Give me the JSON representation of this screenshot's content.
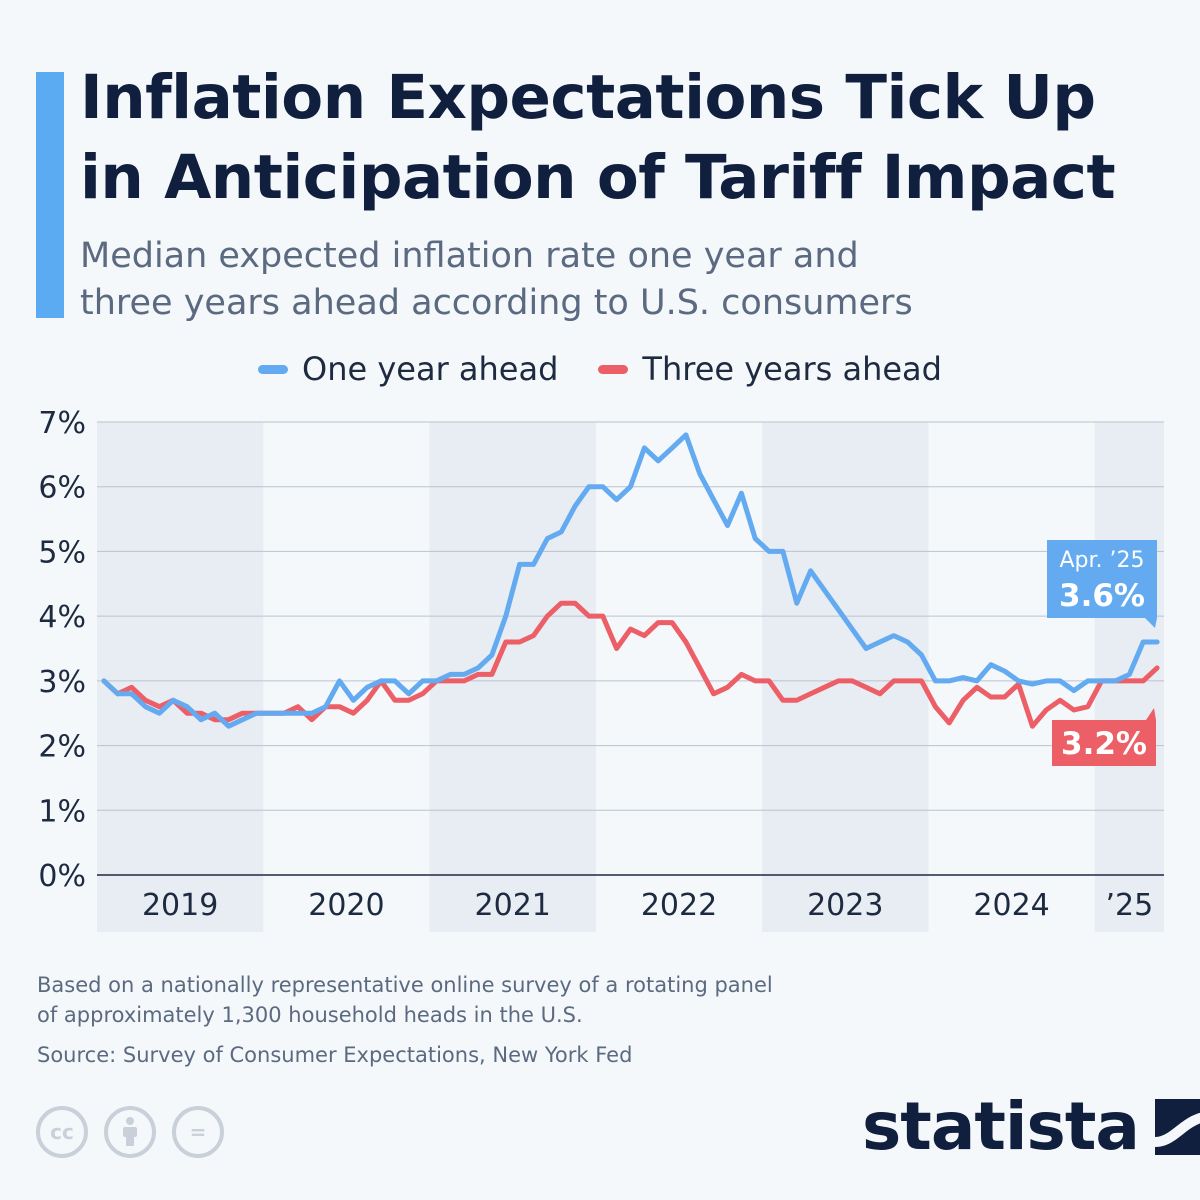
{
  "header": {
    "title_lines": [
      "Inflation Expectations Tick Up",
      "in Anticipation of Tariff Impact"
    ],
    "subtitle_lines": [
      "Median expected inflation rate one year and",
      "three years ahead according to U.S. consumers"
    ]
  },
  "colors": {
    "one_year": "#63aaf0",
    "three_years": "#ec5f66",
    "accent": "#5aabf2",
    "title": "#0f1f3d"
  },
  "legend": {
    "one_year": "One year ahead",
    "three_years": "Three years ahead"
  },
  "chart_data": {
    "type": "line",
    "title": "Inflation Expectations Tick Up in Anticipation of Tariff Impact",
    "xlabel": "",
    "ylabel": "",
    "ylim": [
      0,
      7
    ],
    "y_ticks": [
      "0%",
      "1%",
      "2%",
      "3%",
      "4%",
      "5%",
      "6%",
      "7%"
    ],
    "x_ticks": [
      "2019",
      "2020",
      "2021",
      "2022",
      "2023",
      "2024",
      "’25"
    ],
    "start": "Jan 2019",
    "end": "Apr 2025",
    "grid": true,
    "legend_position": "top-center",
    "series": [
      {
        "name": "One year ahead",
        "values": [
          3.0,
          2.8,
          2.8,
          2.6,
          2.5,
          2.7,
          2.6,
          2.4,
          2.5,
          2.3,
          2.4,
          2.5,
          2.5,
          2.5,
          2.5,
          2.5,
          2.6,
          3.0,
          2.7,
          2.9,
          3.0,
          3.0,
          2.8,
          3.0,
          3.0,
          3.1,
          3.1,
          3.2,
          3.4,
          4.0,
          4.8,
          4.8,
          5.2,
          5.3,
          5.7,
          6.0,
          6.0,
          5.8,
          6.0,
          6.6,
          6.4,
          6.6,
          6.8,
          6.2,
          5.8,
          5.4,
          5.9,
          5.2,
          5.0,
          5.0,
          4.2,
          4.7,
          4.4,
          4.1,
          3.8,
          3.5,
          3.6,
          3.7,
          3.6,
          3.4,
          3.0,
          3.0,
          3.05,
          3.0,
          3.25,
          3.15,
          3.0,
          2.95,
          3.0,
          3.0,
          2.85,
          3.0,
          3.0,
          3.0,
          3.1,
          3.6,
          3.6
        ]
      },
      {
        "name": "Three years ahead",
        "values": [
          3.0,
          2.8,
          2.9,
          2.7,
          2.6,
          2.7,
          2.5,
          2.5,
          2.4,
          2.4,
          2.5,
          2.5,
          2.5,
          2.5,
          2.6,
          2.4,
          2.6,
          2.6,
          2.5,
          2.7,
          3.0,
          2.7,
          2.7,
          2.8,
          3.0,
          3.0,
          3.0,
          3.1,
          3.1,
          3.6,
          3.6,
          3.7,
          4.0,
          4.2,
          4.2,
          4.0,
          4.0,
          3.5,
          3.8,
          3.7,
          3.9,
          3.9,
          3.6,
          3.2,
          2.8,
          2.9,
          3.1,
          3.0,
          3.0,
          2.7,
          2.7,
          2.8,
          2.9,
          3.0,
          3.0,
          2.9,
          2.8,
          3.0,
          3.0,
          3.0,
          2.6,
          2.35,
          2.7,
          2.9,
          2.75,
          2.75,
          2.95,
          2.3,
          2.55,
          2.7,
          2.55,
          2.6,
          3.0,
          3.0,
          3.0,
          3.0,
          3.2
        ]
      }
    ],
    "annotations": [
      {
        "series": "One year ahead",
        "label": "Apr. ’25",
        "value_label": "3.6%"
      },
      {
        "series": "Three years ahead",
        "value_label": "3.2%"
      }
    ]
  },
  "footer": {
    "note_lines": [
      "Based on a nationally representative online survey of a rotating panel",
      "of approximately 1,300 household heads in the U.S."
    ],
    "source": "Source: Survey of Consumer Expectations, New York Fed",
    "license_icons": [
      "cc-icon",
      "by-icon",
      "nd-icon"
    ],
    "cc_label": "cc",
    "nd_label": "=",
    "brand": "statista"
  }
}
